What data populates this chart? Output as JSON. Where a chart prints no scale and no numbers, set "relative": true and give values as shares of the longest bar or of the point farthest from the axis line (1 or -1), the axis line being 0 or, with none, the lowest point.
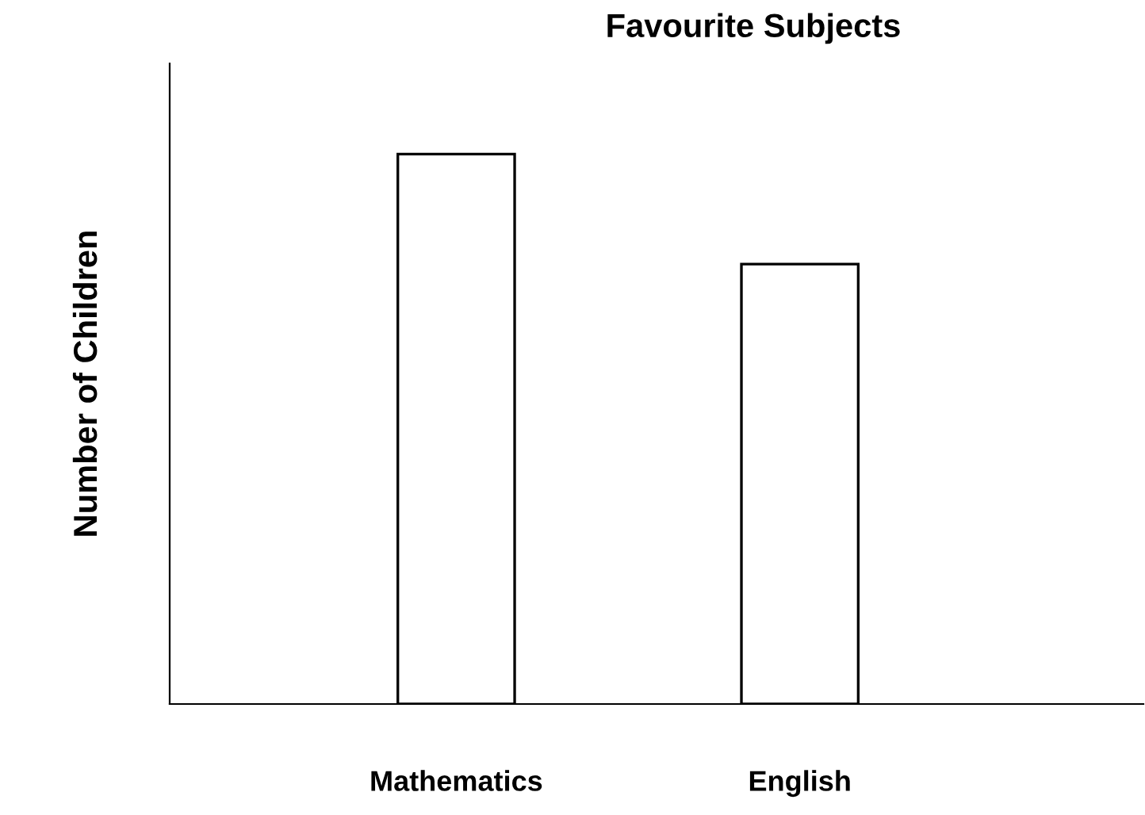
{
  "chart_data": {
    "type": "bar",
    "title": "Favourite Subjects",
    "ylabel": "Number of Children",
    "categories": [
      "Mathematics",
      "English"
    ],
    "values": [
      1,
      0.8
    ],
    "color": "#ffffff",
    "relative": true,
    "grid": false,
    "legend": false
  }
}
